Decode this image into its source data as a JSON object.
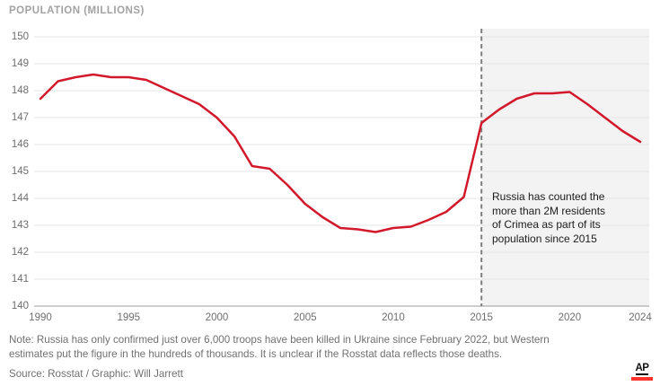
{
  "header": {
    "title": "POPULATION (MILLIONS)"
  },
  "chart_data": {
    "type": "line",
    "title": "POPULATION (MILLIONS)",
    "series_name": "Russia population (millions)",
    "years": [
      1990,
      1991,
      1992,
      1993,
      1994,
      1995,
      1996,
      1997,
      1998,
      1999,
      2000,
      2001,
      2002,
      2003,
      2004,
      2005,
      2006,
      2007,
      2008,
      2009,
      2010,
      2011,
      2012,
      2013,
      2014,
      2015,
      2016,
      2017,
      2018,
      2019,
      2020,
      2021,
      2022,
      2023,
      2024
    ],
    "values": [
      147.7,
      148.35,
      148.5,
      148.6,
      148.5,
      148.5,
      148.4,
      148.1,
      147.8,
      147.5,
      147.0,
      146.3,
      145.2,
      145.1,
      144.5,
      143.8,
      143.3,
      142.9,
      142.85,
      142.75,
      142.9,
      142.95,
      143.2,
      143.5,
      144.05,
      146.8,
      147.3,
      147.7,
      147.9,
      147.9,
      147.95,
      147.5,
      147.0,
      146.5,
      146.1
    ],
    "ylim": [
      140,
      150
    ],
    "yticks": [
      150,
      149,
      148,
      147,
      146,
      145,
      144,
      143,
      142,
      141,
      140
    ],
    "xticks": [
      1990,
      1995,
      2000,
      2005,
      2010,
      2015,
      2020,
      2024
    ],
    "grid": "horizontal",
    "legend": "none",
    "marker_line_year": 2015,
    "shaded_region_years": [
      2015,
      2024
    ],
    "annotation_text": "Russia has counted the\nmore than 2M residents\nof Crimea as part of its\npopulation since 2015"
  },
  "footer": {
    "note": "Note: Russia has only confirmed just over 6,000 troops have been killed in Ukraine since February 2022, but Western\nestimates put the figure in the hundreds of thousands. It is unclear if the Rosstat data reflects those deaths.",
    "source": "Source: Rosstat / Graphic: Will Jarrett",
    "logo_text": "AP"
  },
  "colors": {
    "line": "#d2192c",
    "dashed_marker": "#7f7f7f",
    "shaded_region": "#f3f3f3",
    "gridline": "#e6e6e6",
    "axis_line": "#9b9b9b",
    "title_text": "#a2a2a2",
    "tick_text": "#6e6e6e",
    "note_text": "#707070",
    "annotation_text": "#1c1c1c",
    "ap_red": "#ff322e"
  }
}
